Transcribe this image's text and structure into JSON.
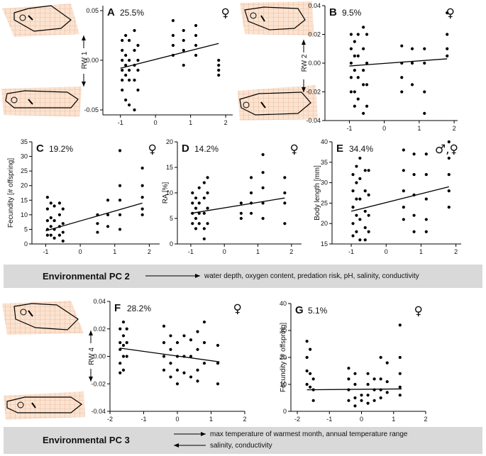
{
  "chart_data": [
    {
      "type": "scatter",
      "panel": "A",
      "percent": "25.5%",
      "sex": "♀",
      "ylabel": "RW 1",
      "xlim": [
        -1.5,
        2.2
      ],
      "ylim": [
        -0.055,
        0.055
      ],
      "xticks": [
        -1,
        0,
        1,
        2
      ],
      "yticks": [
        -0.05,
        {
          "value": 0,
          "label": "0.00"
        },
        0.05
      ],
      "points": [
        [
          -0.95,
          0.02
        ],
        [
          -0.95,
          0.01
        ],
        [
          -0.95,
          0
        ],
        [
          -0.95,
          -0.01
        ],
        [
          -0.95,
          -0.02
        ],
        [
          -0.95,
          -0.03
        ],
        [
          -0.85,
          0.025
        ],
        [
          -0.85,
          0.005
        ],
        [
          -0.85,
          -0.005
        ],
        [
          -0.85,
          -0.015
        ],
        [
          -0.85,
          -0.04
        ],
        [
          -0.75,
          0.02
        ],
        [
          -0.75,
          0
        ],
        [
          -0.75,
          -0.01
        ],
        [
          -0.75,
          -0.02
        ],
        [
          -0.75,
          -0.045
        ],
        [
          -0.6,
          0.03
        ],
        [
          -0.6,
          0.01
        ],
        [
          -0.6,
          -0.005
        ],
        [
          -0.6,
          -0.02
        ],
        [
          -0.6,
          -0.05
        ],
        [
          -0.5,
          0.015
        ],
        [
          -0.5,
          0
        ],
        [
          -0.5,
          -0.01
        ],
        [
          -0.5,
          -0.03
        ],
        [
          0.5,
          0.04
        ],
        [
          0.5,
          0.025
        ],
        [
          0.5,
          0.015
        ],
        [
          0.5,
          0.005
        ],
        [
          0.8,
          0.03
        ],
        [
          0.8,
          0.02
        ],
        [
          0.8,
          0.01
        ],
        [
          0.8,
          -0.005
        ],
        [
          1.15,
          0.035
        ],
        [
          1.15,
          0.025
        ],
        [
          1.15,
          0.015
        ],
        [
          1.15,
          0.005
        ],
        [
          1.8,
          0
        ],
        [
          1.8,
          -0.005
        ],
        [
          1.8,
          -0.01
        ],
        [
          1.8,
          -0.015
        ]
      ],
      "fit": {
        "x": [
          -1,
          1.8
        ],
        "y": [
          -0.008,
          0.017
        ]
      }
    },
    {
      "type": "scatter",
      "panel": "B",
      "percent": "9.5%",
      "sex": "♀",
      "ylabel": "RW 2",
      "xlim": [
        -1.7,
        2.1
      ],
      "ylim": [
        -0.04,
        0.04
      ],
      "xticks": [
        -1,
        0,
        1,
        2
      ],
      "yticks": [
        -0.04,
        -0.02,
        {
          "value": 0,
          "label": "0.00"
        },
        0.02,
        0.04
      ],
      "points": [
        [
          -0.95,
          0.02
        ],
        [
          -0.95,
          0.01
        ],
        [
          -0.95,
          0
        ],
        [
          -0.95,
          -0.01
        ],
        [
          -0.95,
          -0.02
        ],
        [
          -0.85,
          0.015
        ],
        [
          -0.85,
          0.005
        ],
        [
          -0.85,
          -0.005
        ],
        [
          -0.85,
          -0.02
        ],
        [
          -0.85,
          -0.03
        ],
        [
          -0.75,
          0.02
        ],
        [
          -0.75,
          0.005
        ],
        [
          -0.75,
          -0.01
        ],
        [
          -0.75,
          -0.025
        ],
        [
          -0.6,
          0.025
        ],
        [
          -0.6,
          0.01
        ],
        [
          -0.6,
          -0.005
        ],
        [
          -0.6,
          -0.015
        ],
        [
          -0.6,
          -0.035
        ],
        [
          -0.5,
          0.02
        ],
        [
          -0.5,
          0
        ],
        [
          -0.5,
          -0.015
        ],
        [
          -0.5,
          -0.03
        ],
        [
          0.5,
          0.012
        ],
        [
          0.5,
          0
        ],
        [
          0.5,
          -0.01
        ],
        [
          0.5,
          -0.02
        ],
        [
          0.8,
          0.01
        ],
        [
          0.8,
          0
        ],
        [
          0.8,
          -0.015
        ],
        [
          1.15,
          0.01
        ],
        [
          1.15,
          0
        ],
        [
          1.15,
          -0.02
        ],
        [
          1.15,
          -0.035
        ],
        [
          1.8,
          0.035
        ],
        [
          1.8,
          0.02
        ],
        [
          1.8,
          0.01
        ],
        [
          1.8,
          0.005
        ]
      ],
      "fit": {
        "x": [
          -1,
          1.8
        ],
        "y": [
          -0.002,
          0.003
        ]
      }
    },
    {
      "type": "scatter",
      "panel": "C",
      "percent": "19.2%",
      "sex": "♀",
      "ylabel": "Fecundity [# offspring]",
      "xlim": [
        -1.4,
        2.3
      ],
      "ylim": [
        0,
        35
      ],
      "xticks": [
        -1,
        0,
        1,
        2
      ],
      "yticks": [
        0,
        5,
        10,
        15,
        20,
        25,
        30,
        35
      ],
      "points": [
        [
          -0.95,
          16
        ],
        [
          -0.95,
          12
        ],
        [
          -0.95,
          8
        ],
        [
          -0.95,
          5
        ],
        [
          -0.95,
          3
        ],
        [
          -0.85,
          14
        ],
        [
          -0.85,
          9
        ],
        [
          -0.85,
          6
        ],
        [
          -0.85,
          3
        ],
        [
          -0.75,
          13
        ],
        [
          -0.75,
          8
        ],
        [
          -0.75,
          5
        ],
        [
          -0.75,
          2
        ],
        [
          -0.6,
          14
        ],
        [
          -0.6,
          10
        ],
        [
          -0.6,
          6
        ],
        [
          -0.6,
          3
        ],
        [
          -0.5,
          12
        ],
        [
          -0.5,
          7
        ],
        [
          -0.5,
          4
        ],
        [
          -0.5,
          1
        ],
        [
          0.5,
          10
        ],
        [
          0.5,
          7
        ],
        [
          0.5,
          4
        ],
        [
          0.8,
          15
        ],
        [
          0.8,
          10
        ],
        [
          0.8,
          6
        ],
        [
          1.15,
          32
        ],
        [
          1.15,
          20
        ],
        [
          1.15,
          15
        ],
        [
          1.15,
          10
        ],
        [
          1.15,
          5
        ],
        [
          1.8,
          26
        ],
        [
          1.8,
          20
        ],
        [
          1.8,
          16
        ],
        [
          1.8,
          12
        ],
        [
          1.8,
          10
        ]
      ],
      "fit": {
        "x": [
          -1,
          1.8
        ],
        "y": [
          4.5,
          14
        ]
      }
    },
    {
      "type": "scatter",
      "panel": "D",
      "percent": "14.2%",
      "sex": "♀",
      "ylabel": "RA [%]",
      "xlim": [
        -1.4,
        2.3
      ],
      "ylim": [
        0,
        20
      ],
      "xticks": [
        -1,
        0,
        1,
        2
      ],
      "yticks": [
        0,
        5,
        10,
        15,
        20
      ],
      "points": [
        [
          -0.95,
          10
        ],
        [
          -0.95,
          8
        ],
        [
          -0.95,
          6
        ],
        [
          -0.95,
          4
        ],
        [
          -0.85,
          9
        ],
        [
          -0.85,
          7
        ],
        [
          -0.85,
          5
        ],
        [
          -0.85,
          3
        ],
        [
          -0.75,
          11
        ],
        [
          -0.75,
          8
        ],
        [
          -0.75,
          6
        ],
        [
          -0.75,
          4
        ],
        [
          -0.6,
          12
        ],
        [
          -0.6,
          9
        ],
        [
          -0.6,
          6
        ],
        [
          -0.6,
          3
        ],
        [
          -0.6,
          1
        ],
        [
          -0.5,
          13
        ],
        [
          -0.5,
          10
        ],
        [
          -0.5,
          7
        ],
        [
          -0.5,
          4
        ],
        [
          0.5,
          8
        ],
        [
          0.5,
          6
        ],
        [
          0.5,
          5
        ],
        [
          0.8,
          13
        ],
        [
          0.8,
          10
        ],
        [
          0.8,
          8
        ],
        [
          0.8,
          6
        ],
        [
          1.15,
          17.5
        ],
        [
          1.15,
          14
        ],
        [
          1.15,
          11
        ],
        [
          1.15,
          8
        ],
        [
          1.15,
          5
        ],
        [
          1.8,
          13
        ],
        [
          1.8,
          10
        ],
        [
          1.8,
          8
        ],
        [
          1.8,
          4
        ]
      ],
      "fit": {
        "x": [
          -1,
          1.8
        ],
        "y": [
          6,
          9
        ]
      }
    },
    {
      "type": "scatter",
      "panel": "E",
      "percent": "34.4%",
      "sex": "♂,♀",
      "ylabel": "Body length [mm]",
      "xlim": [
        -1.55,
        2.15
      ],
      "ylim": [
        15,
        40
      ],
      "xticks": [
        -1,
        0,
        1,
        2
      ],
      "yticks": [
        15,
        20,
        25,
        30,
        35,
        40
      ],
      "points": [
        [
          -0.95,
          32
        ],
        [
          -0.95,
          28
        ],
        [
          -0.95,
          24
        ],
        [
          -0.95,
          20
        ],
        [
          -0.95,
          17
        ],
        [
          -0.85,
          34
        ],
        [
          -0.85,
          30
        ],
        [
          -0.85,
          26
        ],
        [
          -0.85,
          22
        ],
        [
          -0.85,
          18
        ],
        [
          -0.75,
          36
        ],
        [
          -0.75,
          31
        ],
        [
          -0.75,
          26
        ],
        [
          -0.75,
          21
        ],
        [
          -0.75,
          16
        ],
        [
          -0.6,
          33
        ],
        [
          -0.6,
          28
        ],
        [
          -0.6,
          23
        ],
        [
          -0.6,
          19
        ],
        [
          -0.6,
          16
        ],
        [
          -0.5,
          33
        ],
        [
          -0.5,
          27
        ],
        [
          -0.5,
          22
        ],
        [
          -0.5,
          18
        ],
        [
          0.5,
          38
        ],
        [
          0.5,
          33
        ],
        [
          0.5,
          28
        ],
        [
          0.5,
          24
        ],
        [
          0.5,
          21
        ],
        [
          0.8,
          37
        ],
        [
          0.8,
          32
        ],
        [
          0.8,
          27
        ],
        [
          0.8,
          22
        ],
        [
          0.8,
          18
        ],
        [
          1.15,
          37
        ],
        [
          1.15,
          32
        ],
        [
          1.15,
          26
        ],
        [
          1.15,
          21
        ],
        [
          1.15,
          18
        ],
        [
          1.8,
          40
        ],
        [
          1.8,
          36
        ],
        [
          1.8,
          32
        ],
        [
          1.8,
          28
        ],
        [
          1.8,
          24
        ]
      ],
      "fit": {
        "x": [
          -1,
          1.8
        ],
        "y": [
          23,
          29
        ]
      }
    },
    {
      "type": "scatter",
      "panel": "F",
      "percent": "28.2%",
      "sex": "♀",
      "ylabel": "RW 4",
      "xlim": [
        -2,
        2
      ],
      "ylim": [
        -0.04,
        0.04
      ],
      "xticks": [
        -2,
        -1,
        0,
        1,
        2
      ],
      "yticks": [
        -0.04,
        -0.02,
        {
          "value": 0,
          "label": "0.00"
        },
        0.02,
        0.04
      ],
      "points": [
        [
          -1.7,
          0.02
        ],
        [
          -1.7,
          0.01
        ],
        [
          -1.7,
          0.005
        ],
        [
          -1.7,
          -0.005
        ],
        [
          -1.7,
          -0.012
        ],
        [
          -1.6,
          0.025
        ],
        [
          -1.6,
          0.015
        ],
        [
          -1.6,
          0.008
        ],
        [
          -1.6,
          0
        ],
        [
          -1.6,
          -0.01
        ],
        [
          -1.5,
          0.02
        ],
        [
          -1.5,
          0.01
        ],
        [
          -1.5,
          0
        ],
        [
          -0.4,
          0.022
        ],
        [
          -0.4,
          0.01
        ],
        [
          -0.4,
          0
        ],
        [
          -0.4,
          -0.01
        ],
        [
          -0.2,
          0.015
        ],
        [
          -0.2,
          0.005
        ],
        [
          -0.2,
          -0.005
        ],
        [
          -0.2,
          -0.015
        ],
        [
          0,
          0.01
        ],
        [
          0,
          0
        ],
        [
          0,
          -0.01
        ],
        [
          0,
          -0.02
        ],
        [
          0.2,
          0.015
        ],
        [
          0.2,
          0
        ],
        [
          0.2,
          -0.012
        ],
        [
          0.4,
          0.012
        ],
        [
          0.4,
          0
        ],
        [
          0.4,
          -0.015
        ],
        [
          0.6,
          0.018
        ],
        [
          0.6,
          0.005
        ],
        [
          0.6,
          -0.01
        ],
        [
          0.6,
          -0.018
        ],
        [
          0.8,
          0.025
        ],
        [
          0.8,
          0.01
        ],
        [
          0.8,
          -0.005
        ],
        [
          1.2,
          0.008
        ],
        [
          1.2,
          -0.005
        ],
        [
          1.2,
          -0.02
        ]
      ],
      "fit": {
        "x": [
          -1.7,
          1.25
        ],
        "y": [
          0.006,
          -0.004
        ]
      }
    },
    {
      "type": "scatter",
      "panel": "G",
      "percent": "5.1%",
      "sex": "♀",
      "ylabel": "Fecundity [# offspring]",
      "xlim": [
        -2.2,
        2
      ],
      "ylim": [
        0,
        40
      ],
      "xticks": [
        -2,
        -1,
        0,
        1,
        2
      ],
      "yticks": [
        0,
        10,
        20,
        30,
        40
      ],
      "points": [
        [
          -1.7,
          26
        ],
        [
          -1.7,
          20
        ],
        [
          -1.7,
          15
        ],
        [
          -1.7,
          10
        ],
        [
          -1.6,
          23
        ],
        [
          -1.6,
          14
        ],
        [
          -1.6,
          9
        ],
        [
          -1.5,
          12
        ],
        [
          -1.5,
          8
        ],
        [
          -1.5,
          4
        ],
        [
          -0.4,
          16
        ],
        [
          -0.4,
          12
        ],
        [
          -0.4,
          8
        ],
        [
          -0.4,
          4
        ],
        [
          -0.2,
          14
        ],
        [
          -0.2,
          10
        ],
        [
          -0.2,
          5
        ],
        [
          -0.2,
          2
        ],
        [
          0,
          6
        ],
        [
          0,
          4
        ],
        [
          0.2,
          14
        ],
        [
          0.2,
          10
        ],
        [
          0.2,
          6
        ],
        [
          0.2,
          3
        ],
        [
          0.4,
          12
        ],
        [
          0.4,
          8
        ],
        [
          0.4,
          4
        ],
        [
          0.6,
          20
        ],
        [
          0.6,
          12
        ],
        [
          0.6,
          8
        ],
        [
          0.6,
          5
        ],
        [
          0.8,
          18
        ],
        [
          0.8,
          11
        ],
        [
          0.8,
          7
        ],
        [
          1.2,
          32
        ],
        [
          1.2,
          20
        ],
        [
          1.2,
          14
        ],
        [
          1.2,
          9
        ],
        [
          1.2,
          6
        ]
      ],
      "fit": {
        "x": [
          -1.7,
          1.25
        ],
        "y": [
          8,
          8.3
        ]
      }
    }
  ],
  "bands": [
    {
      "title": "Environmental PC 2",
      "right": "water depth, oxygen content, predation risk, pH, salinity, conductivity"
    },
    {
      "title": "Environmental PC 3",
      "right": "max temperature of warmest month, annual temperature range",
      "left": "salinity, conductivity"
    }
  ]
}
